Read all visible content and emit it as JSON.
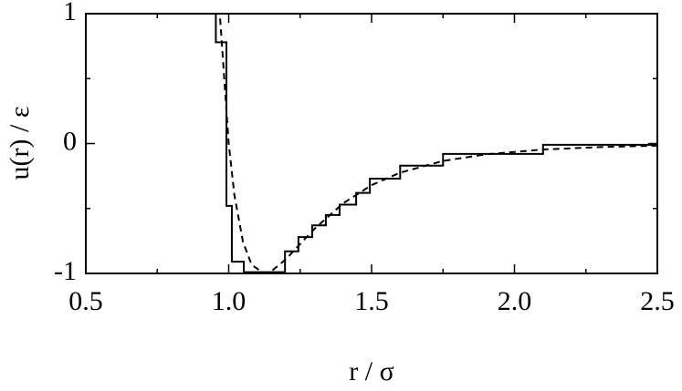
{
  "chart_data": {
    "type": "line",
    "xlabel": "r / σ",
    "ylabel": "u(r) / ε",
    "xlim": [
      0.5,
      2.5
    ],
    "ylim": [
      -1,
      1
    ],
    "xticks": [
      0.5,
      {
        "value": 1,
        "label": "1.0"
      },
      1.5,
      {
        "value": 2,
        "label": "2.0"
      },
      2.5
    ],
    "yticks": [
      -1,
      0,
      1
    ],
    "xminor": [
      0.75,
      1.25,
      1.75,
      2.25
    ],
    "yminor": [
      -0.5,
      0.5
    ],
    "series": [
      {
        "style": "dashed",
        "color": "#000",
        "x": [
          0.97,
          1.0,
          1.02,
          1.05,
          1.08,
          1.12246,
          1.15,
          1.2,
          1.3,
          1.4,
          1.5,
          1.6,
          1.75,
          1.9,
          2.1,
          2.3,
          2.5
        ],
        "values": [
          0.963,
          0,
          -0.398,
          -0.758,
          -0.932,
          -1,
          -0.982,
          -0.891,
          -0.657,
          -0.461,
          -0.32,
          -0.224,
          -0.134,
          -0.083,
          -0.046,
          -0.027,
          -0.016
        ]
      },
      {
        "style": "steps",
        "color": "#000",
        "x": [
          0.955,
          0.992,
          1.011,
          1.053,
          1.197,
          1.244,
          1.292,
          1.34,
          1.388,
          1.446,
          1.494,
          1.6,
          1.75,
          2.1,
          2.5
        ],
        "values": [
          0.78,
          -0.48,
          -0.91,
          -0.99,
          -0.83,
          -0.72,
          -0.63,
          -0.55,
          -0.47,
          -0.38,
          -0.27,
          -0.17,
          -0.08,
          -0.01,
          -0.01
        ]
      }
    ]
  }
}
